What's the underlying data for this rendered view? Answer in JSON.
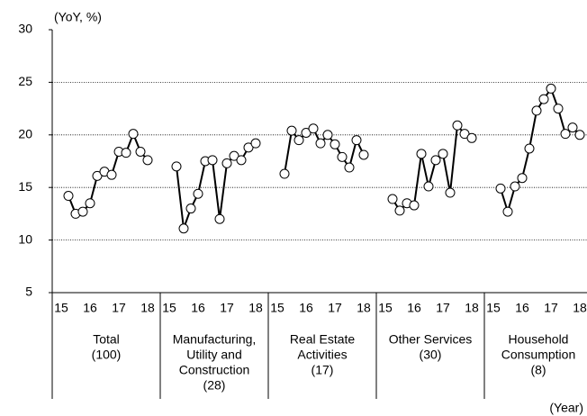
{
  "chart_data": {
    "type": "line",
    "y_label": "(YoY, %)",
    "x_label": "(Year)",
    "year_labels": [
      "15",
      "16",
      "17",
      "18"
    ],
    "ylim": [
      5,
      30
    ],
    "yticks": [
      5,
      10,
      15,
      20,
      25,
      30
    ],
    "grid": true,
    "color": "#000000",
    "series": [
      {
        "label_lines": [
          "Total",
          "(100)"
        ],
        "values": [
          14.2,
          12.5,
          12.7,
          13.5,
          16.1,
          16.5,
          16.2,
          18.4,
          18.3,
          20.1,
          18.4,
          17.6
        ]
      },
      {
        "label_lines": [
          "Manufacturing,",
          "Utility and",
          "Construction",
          "(28)"
        ],
        "values": [
          17.0,
          11.1,
          13.0,
          14.4,
          17.5,
          17.6,
          12.0,
          17.3,
          18.0,
          17.6,
          18.8,
          19.2
        ]
      },
      {
        "label_lines": [
          "Real Estate",
          "Activities",
          "(17)"
        ],
        "values": [
          16.3,
          20.4,
          19.5,
          20.2,
          20.6,
          19.2,
          20.0,
          19.1,
          17.9,
          16.9,
          19.5,
          18.1
        ]
      },
      {
        "label_lines": [
          "Other Services",
          "(30)"
        ],
        "values": [
          13.9,
          12.8,
          13.5,
          13.3,
          18.2,
          15.1,
          17.6,
          18.2,
          14.5,
          20.9,
          20.1,
          19.7
        ]
      },
      {
        "label_lines": [
          "Household",
          "Consumption",
          "(8)"
        ],
        "values": [
          14.9,
          12.7,
          15.1,
          15.9,
          18.7,
          22.3,
          23.4,
          24.4,
          22.5,
          20.1,
          20.7,
          20.0
        ]
      }
    ]
  }
}
